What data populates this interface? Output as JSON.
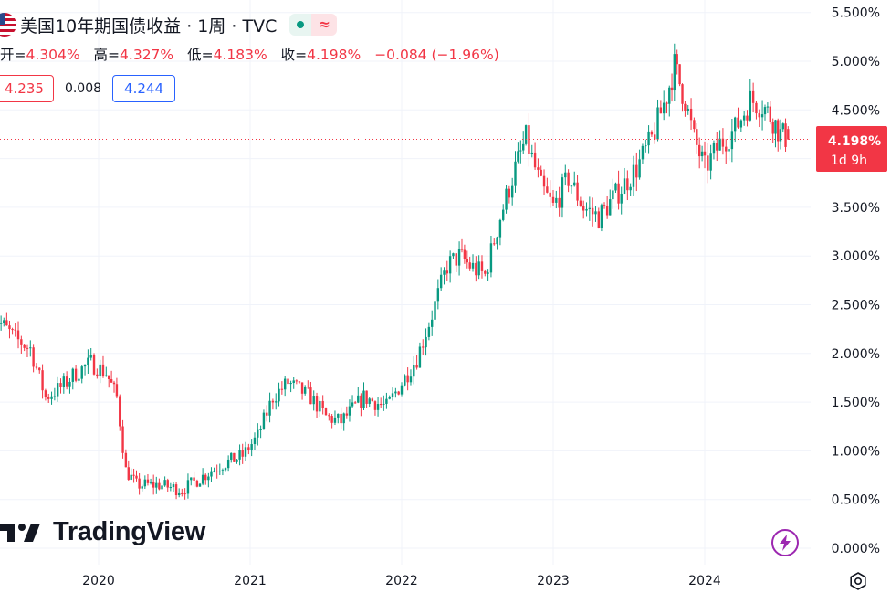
{
  "legend": {
    "title": "美国10年期国债收益 · 1周 · TVC",
    "open_label": "开=",
    "open": "4.304%",
    "high_label": "高=",
    "high": "4.327%",
    "low_label": "低=",
    "low": "4.183%",
    "close_label": "收=",
    "close": "4.198%",
    "change": "−0.084 (−1.96%)",
    "bid": "4.235",
    "spread": "0.008",
    "ask": "4.244",
    "status_wave": "≈"
  },
  "logo": {
    "text": "TradingView"
  },
  "last_price": {
    "value": "4.198%",
    "countdown": "1d 9h"
  },
  "colors": {
    "up": "#089981",
    "down": "#f23645",
    "ask": "#2962ff",
    "grid": "#f0f3fa",
    "flash": "#9c27b0"
  },
  "icons": [
    "us-flag-icon",
    "market-status-icon",
    "tradingview-logo-icon",
    "flash-icon",
    "settings-icon"
  ],
  "chart_data": {
    "type": "candlestick",
    "title": "美国10年期国债收益 · 1周 · TVC",
    "interval": "1周",
    "y_unit": "%",
    "y_ticks": [
      "5.500%",
      "5.000%",
      "4.500%",
      "4.000%",
      "3.500%",
      "3.000%",
      "2.500%",
      "2.000%",
      "1.500%",
      "1.000%",
      "0.500%",
      "0.000%"
    ],
    "x_ticks": [
      "2020",
      "2021",
      "2022",
      "2023",
      "2024"
    ],
    "ylim": [
      0,
      5.5
    ],
    "grid": true,
    "last_close": 4.198,
    "approx_path": [
      [
        2019.3,
        2.4
      ],
      [
        2019.45,
        2.15
      ],
      [
        2019.55,
        2.05
      ],
      [
        2019.65,
        1.55
      ],
      [
        2019.75,
        1.65
      ],
      [
        2019.85,
        1.8
      ],
      [
        2019.95,
        1.9
      ],
      [
        2020.05,
        1.8
      ],
      [
        2020.12,
        1.55
      ],
      [
        2020.18,
        0.8
      ],
      [
        2020.25,
        0.65
      ],
      [
        2020.4,
        0.65
      ],
      [
        2020.55,
        0.6
      ],
      [
        2020.65,
        0.7
      ],
      [
        2020.8,
        0.85
      ],
      [
        2020.95,
        0.95
      ],
      [
        2021.05,
        1.15
      ],
      [
        2021.15,
        1.55
      ],
      [
        2021.25,
        1.7
      ],
      [
        2021.4,
        1.55
      ],
      [
        2021.5,
        1.35
      ],
      [
        2021.6,
        1.3
      ],
      [
        2021.75,
        1.55
      ],
      [
        2021.9,
        1.45
      ],
      [
        2022.0,
        1.7
      ],
      [
        2022.1,
        1.95
      ],
      [
        2022.2,
        2.4
      ],
      [
        2022.3,
        2.9
      ],
      [
        2022.38,
        3.0
      ],
      [
        2022.45,
        2.9
      ],
      [
        2022.55,
        2.8
      ],
      [
        2022.65,
        3.4
      ],
      [
        2022.75,
        3.9
      ],
      [
        2022.82,
        4.2
      ],
      [
        2022.92,
        3.7
      ],
      [
        2023.0,
        3.5
      ],
      [
        2023.1,
        3.8
      ],
      [
        2023.2,
        3.5
      ],
      [
        2023.3,
        3.4
      ],
      [
        2023.45,
        3.7
      ],
      [
        2023.55,
        3.9
      ],
      [
        2023.65,
        4.2
      ],
      [
        2023.75,
        4.65
      ],
      [
        2023.8,
        4.95
      ],
      [
        2023.87,
        4.6
      ],
      [
        2023.93,
        4.2
      ],
      [
        2024.0,
        3.9
      ],
      [
        2024.1,
        4.15
      ],
      [
        2024.2,
        4.3
      ],
      [
        2024.3,
        4.6
      ],
      [
        2024.38,
        4.55
      ],
      [
        2024.45,
        4.4
      ],
      [
        2024.5,
        4.25
      ],
      [
        2024.55,
        4.198
      ]
    ]
  }
}
